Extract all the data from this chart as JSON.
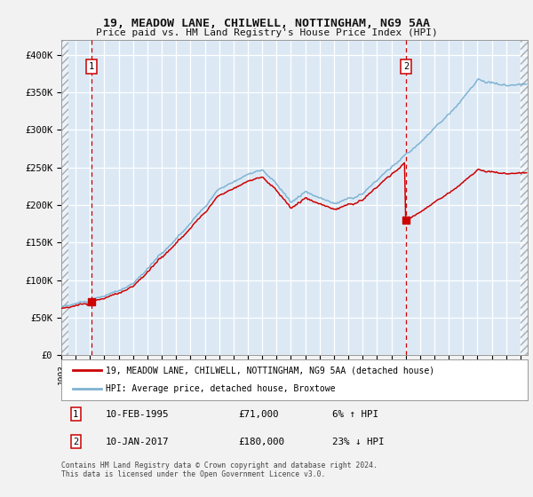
{
  "title": "19, MEADOW LANE, CHILWELL, NOTTINGHAM, NG9 5AA",
  "subtitle": "Price paid vs. HM Land Registry's House Price Index (HPI)",
  "legend_line1": "19, MEADOW LANE, CHILWELL, NOTTINGHAM, NG9 5AA (detached house)",
  "legend_line2": "HPI: Average price, detached house, Broxtowe",
  "annotation1_date": "10-FEB-1995",
  "annotation1_price": "£71,000",
  "annotation1_hpi": "6% ↑ HPI",
  "annotation2_date": "10-JAN-2017",
  "annotation2_price": "£180,000",
  "annotation2_hpi": "23% ↓ HPI",
  "sale1_year": 1995.11,
  "sale1_price": 71000,
  "sale2_year": 2017.03,
  "sale2_price": 180000,
  "hpi_line_color": "#7fb3d3",
  "price_line_color": "#cc0000",
  "marker_color": "#cc0000",
  "vline_color": "#cc0000",
  "plot_bg_color": "#dce9f5",
  "grid_color": "#ffffff",
  "footer_text": "Contains HM Land Registry data © Crown copyright and database right 2024.\nThis data is licensed under the Open Government Licence v3.0.",
  "ylim": [
    0,
    420000
  ],
  "xlim_start": 1993.0,
  "xlim_end": 2025.5
}
